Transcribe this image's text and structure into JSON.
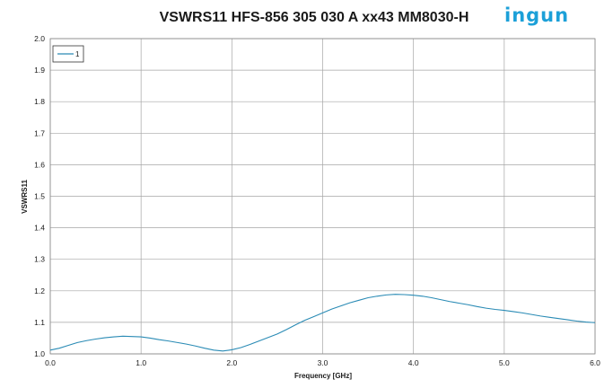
{
  "brand": {
    "logo_text": "ingun",
    "logo_color": "#1ca0d8"
  },
  "colors": {
    "series": "#2a8bb5",
    "grid": "#a6a6a6",
    "frame": "#888888"
  },
  "chart_data": {
    "type": "line",
    "title": "VSWRS11 HFS-856 305 030 A xx43 MM8030-H",
    "xlabel": "Frequency [GHz]",
    "ylabel": "VSWRS11",
    "xlim": [
      0.0,
      6.0
    ],
    "ylim": [
      1.0,
      2.0
    ],
    "xticks": [
      "0.0",
      "1.0",
      "2.0",
      "3.0",
      "4.0",
      "5.0",
      "6.0"
    ],
    "yticks": [
      "1.0",
      "1.1",
      "1.2",
      "1.3",
      "1.4",
      "1.5",
      "1.6",
      "1.7",
      "1.8",
      "1.9",
      "2.0"
    ],
    "grid": true,
    "legend": {
      "position": "top-left"
    },
    "series": [
      {
        "name": "1",
        "x": [
          0.0,
          0.1,
          0.2,
          0.3,
          0.4,
          0.5,
          0.6,
          0.7,
          0.8,
          0.9,
          1.0,
          1.1,
          1.2,
          1.3,
          1.4,
          1.5,
          1.6,
          1.7,
          1.8,
          1.9,
          2.0,
          2.1,
          2.2,
          2.3,
          2.4,
          2.5,
          2.6,
          2.7,
          2.8,
          2.9,
          3.0,
          3.1,
          3.2,
          3.3,
          3.4,
          3.5,
          3.6,
          3.7,
          3.8,
          3.9,
          4.0,
          4.1,
          4.2,
          4.3,
          4.4,
          4.5,
          4.6,
          4.7,
          4.8,
          4.9,
          5.0,
          5.1,
          5.2,
          5.3,
          5.4,
          5.5,
          5.6,
          5.7,
          5.8,
          5.9,
          6.0
        ],
        "values": [
          1.012,
          1.018,
          1.027,
          1.036,
          1.042,
          1.047,
          1.051,
          1.054,
          1.056,
          1.055,
          1.054,
          1.05,
          1.045,
          1.041,
          1.036,
          1.031,
          1.025,
          1.018,
          1.012,
          1.009,
          1.013,
          1.02,
          1.03,
          1.041,
          1.052,
          1.063,
          1.077,
          1.092,
          1.106,
          1.118,
          1.13,
          1.142,
          1.152,
          1.162,
          1.17,
          1.178,
          1.183,
          1.187,
          1.189,
          1.188,
          1.186,
          1.183,
          1.178,
          1.172,
          1.166,
          1.161,
          1.156,
          1.15,
          1.145,
          1.141,
          1.138,
          1.134,
          1.13,
          1.125,
          1.12,
          1.116,
          1.112,
          1.108,
          1.104,
          1.101,
          1.099
        ]
      }
    ]
  }
}
